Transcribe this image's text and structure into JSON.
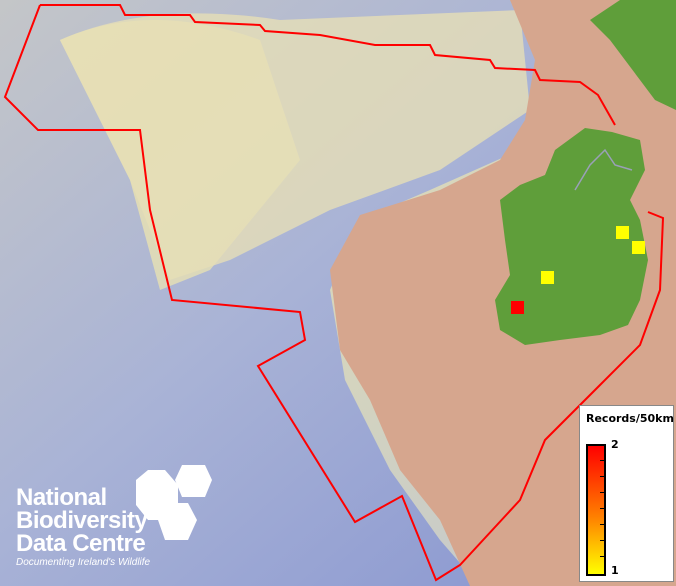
{
  "map": {
    "colors": {
      "sea_deep": "#8e9cd6",
      "sea_shallow": "#c9ccc0",
      "shelf": "#e3dcae",
      "land_bg": "#d4a48c",
      "ireland": "#5f9e3a",
      "boundary": "#ff0000"
    },
    "records": [
      {
        "label": "square-1",
        "count": 1,
        "color": "#ffff00"
      },
      {
        "label": "square-2",
        "count": 1,
        "color": "#ffff00"
      },
      {
        "label": "square-3",
        "count": 1,
        "color": "#ffff00"
      },
      {
        "label": "square-4",
        "count": 2,
        "color": "#ff0000"
      }
    ]
  },
  "legend": {
    "title": "Records/50km",
    "max": "2",
    "min": "1"
  },
  "logo": {
    "line1": "National",
    "line2": "Biodiversity",
    "line3": "Data Centre",
    "tagline": "Documenting Ireland's Wildlife"
  }
}
